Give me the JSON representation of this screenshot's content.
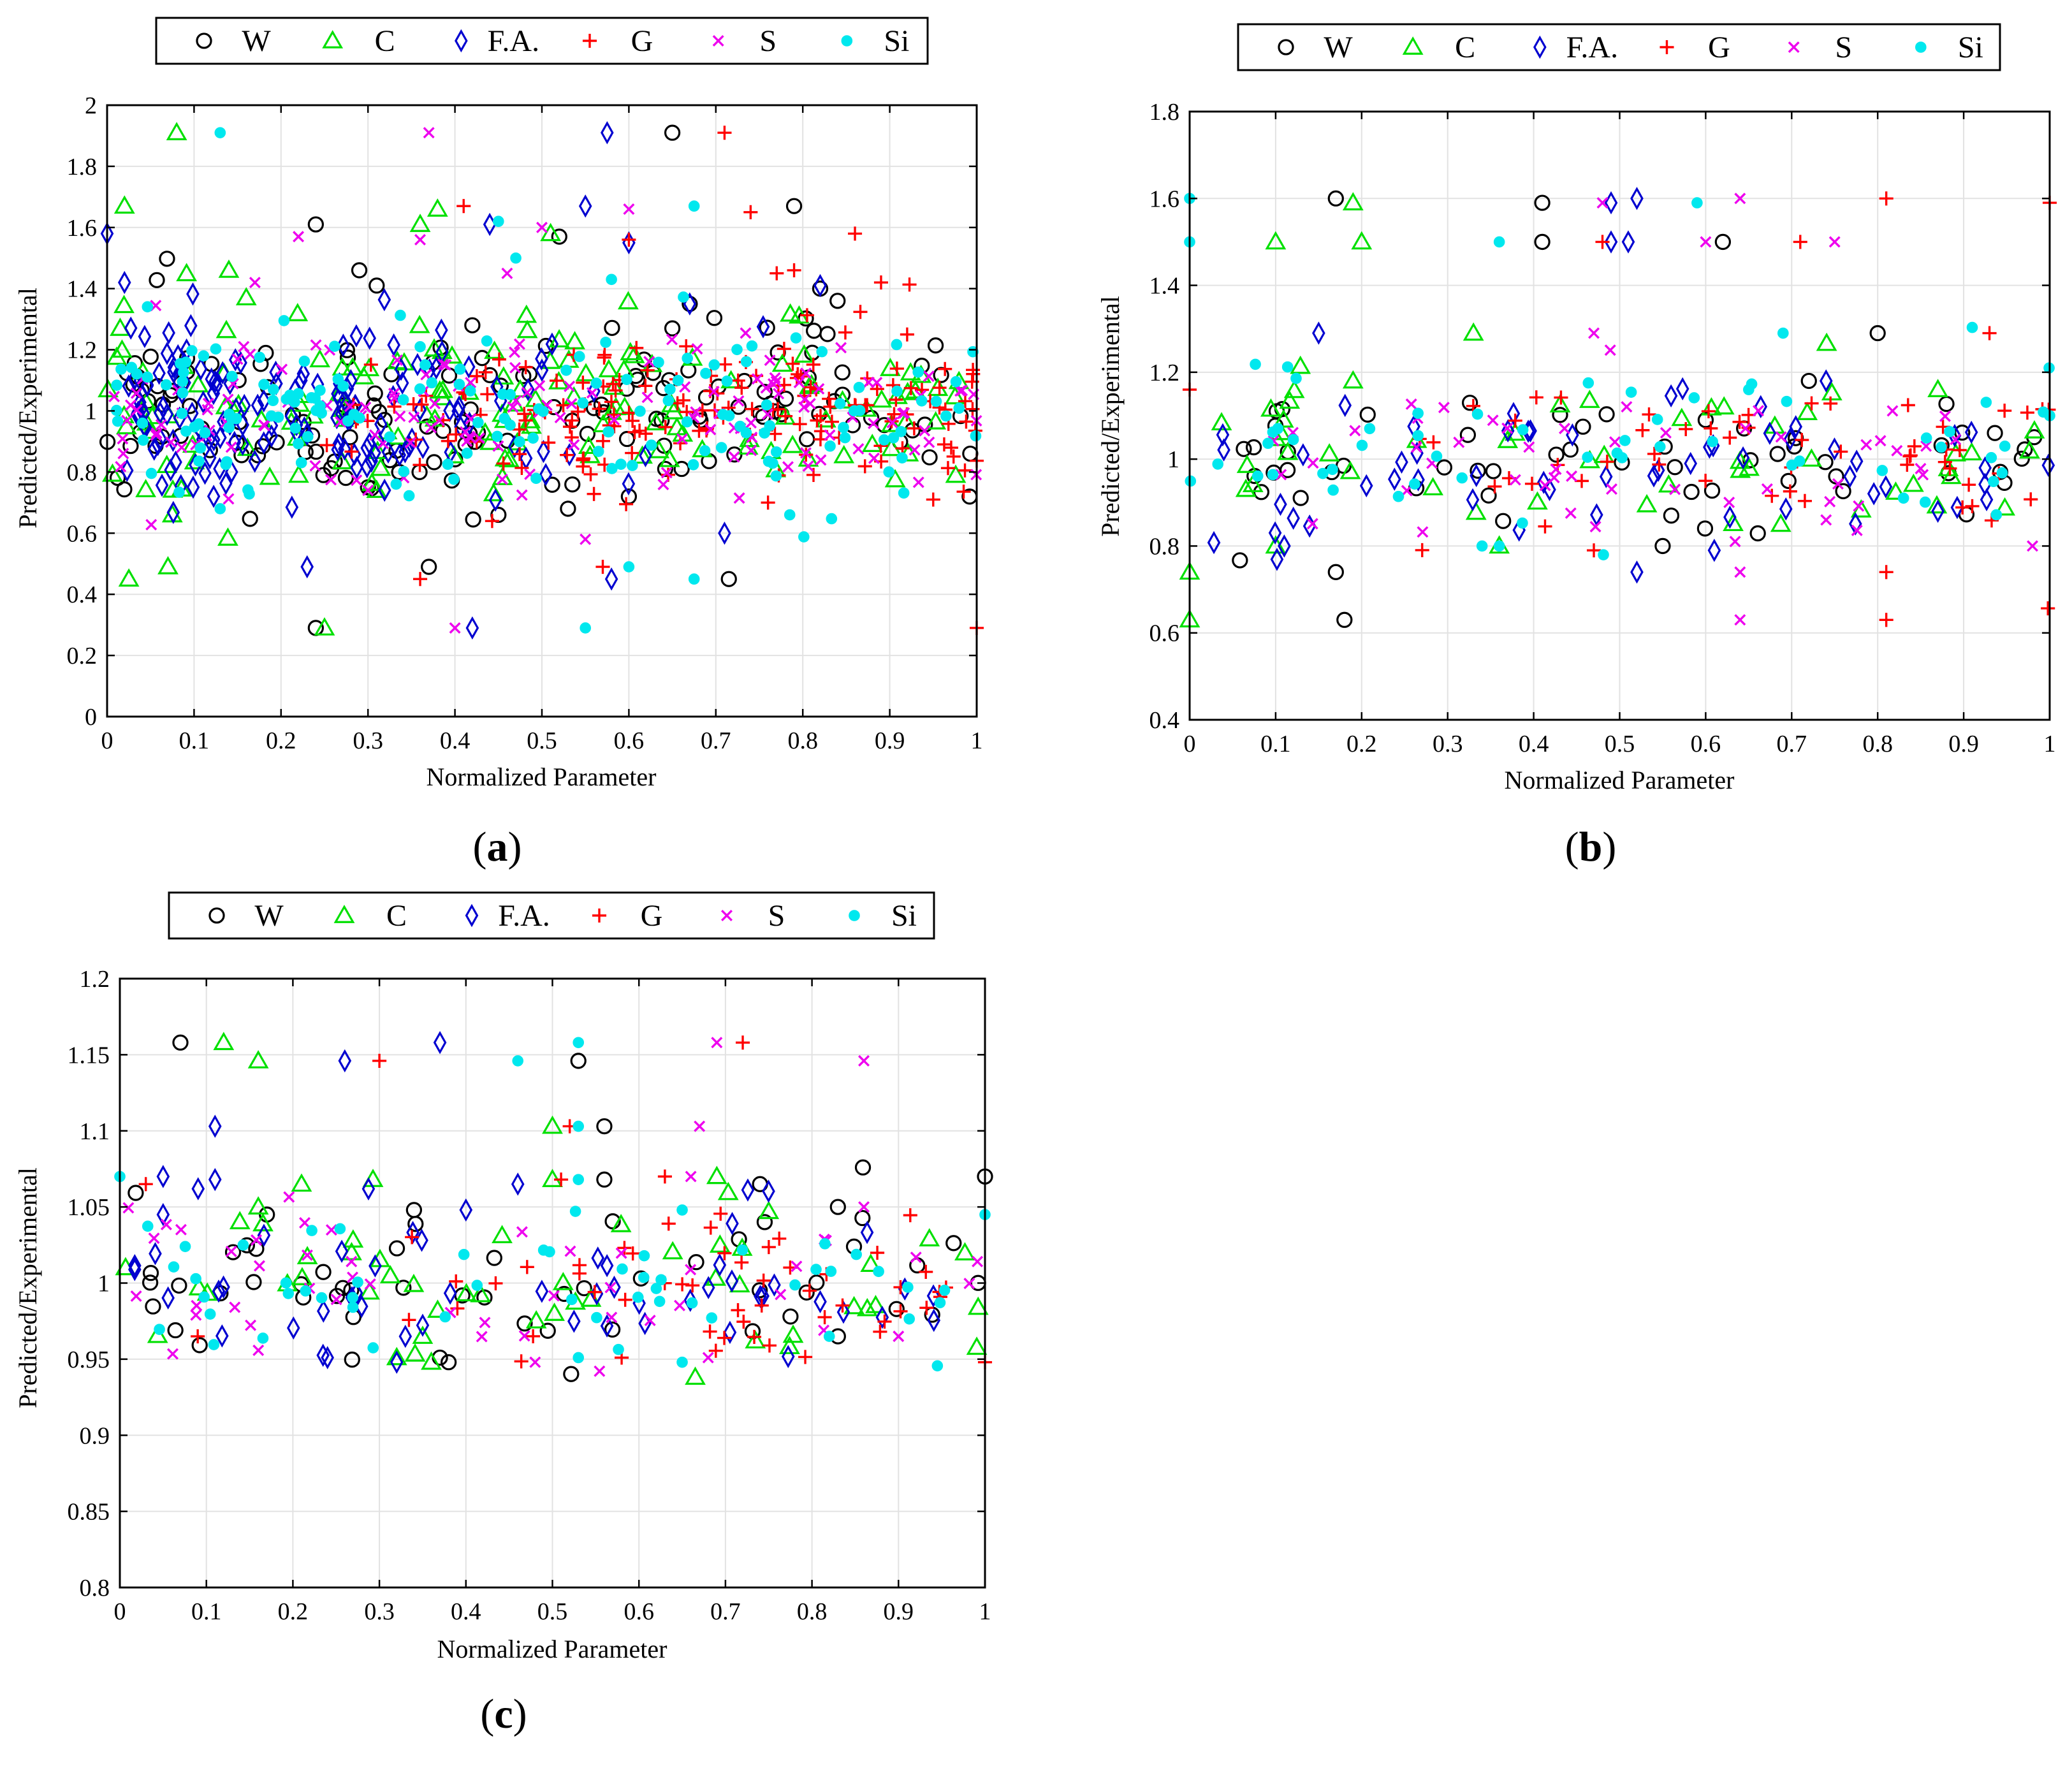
{
  "chart_data": [
    {
      "id": "a",
      "type": "scatter",
      "panel_label": "(a)",
      "panel_letter": "a",
      "xlabel": "Normalized Parameter",
      "ylabel": "Predicted/Experimental",
      "xlim": [
        0,
        1
      ],
      "ylim": [
        0,
        2
      ],
      "xticks": [
        0,
        0.1,
        0.2,
        0.3,
        0.4,
        0.5,
        0.6,
        0.7,
        0.8,
        0.9,
        1
      ],
      "yticks": [
        0,
        0.2,
        0.4,
        0.6,
        0.8,
        1,
        1.2,
        1.4,
        1.6,
        1.8,
        2
      ],
      "grid": true,
      "legend": [
        "W",
        "C",
        "F.A.",
        "G",
        "S",
        "Si"
      ],
      "series": [
        {
          "name": "W",
          "color": "#000000",
          "marker": "circle",
          "seed": 11,
          "count": 150,
          "spread": 0.14,
          "x": [
            0.65,
            0.24,
            0.79,
            0.715,
            0.37,
            0.24,
            0.31,
            0.29,
            0.42,
            0.52,
            0.53,
            0.65,
            0.3,
            0.45,
            0.6,
            0.67,
            0.82,
            0.84
          ],
          "y": [
            1.91,
            1.61,
            1.67,
            0.45,
            0.49,
            0.29,
            1.41,
            1.46,
            1.28,
            1.57,
            0.68,
            1.27,
            0.75,
            0.66,
            0.72,
            1.35,
            1.4,
            1.36
          ]
        },
        {
          "name": "C",
          "color": "#00e000",
          "marker": "triangle",
          "seed": 22,
          "count": 150,
          "spread": 0.14,
          "x": [
            0.08,
            0.02,
            0.07,
            0.38,
            0.36,
            0.025,
            0.075,
            0.25,
            0.51,
            0.015,
            0.14,
            0.31,
            0.16
          ],
          "y": [
            1.91,
            1.67,
            0.49,
            1.66,
            1.61,
            0.45,
            0.66,
            0.29,
            1.58,
            1.27,
            1.46,
            0.74,
            1.37
          ]
        },
        {
          "name": "F.A.",
          "color": "#0000d0",
          "marker": "diamond",
          "seed": 33,
          "count": 160,
          "spread": 0.14,
          "x": [
            0.575,
            0.0,
            0.02,
            0.42,
            0.23,
            0.58,
            0.44,
            0.55,
            0.6,
            0.82,
            0.67,
            0.71
          ],
          "y": [
            1.91,
            1.58,
            1.42,
            0.29,
            0.49,
            0.45,
            1.61,
            1.67,
            1.55,
            1.41,
            1.35,
            0.6
          ]
        },
        {
          "name": "G",
          "color": "#ff0000",
          "marker": "plus",
          "seed": 44,
          "count": 170,
          "spread": 0.12,
          "x": [
            0.71,
            1.0,
            0.36,
            0.41,
            0.6,
            0.74,
            0.77,
            0.79,
            0.86,
            0.92,
            0.95,
            0.57,
            0.76,
            0.89
          ],
          "y": [
            1.91,
            0.29,
            0.45,
            1.67,
            1.56,
            1.65,
            1.45,
            1.46,
            1.58,
            1.25,
            0.71,
            0.49,
            0.7,
            1.42
          ]
        },
        {
          "name": "S",
          "color": "#ee00ee",
          "marker": "x",
          "seed": 55,
          "count": 150,
          "spread": 0.14,
          "x": [
            0.37,
            0.4,
            0.22,
            0.6,
            0.36,
            0.46,
            0.5,
            0.55,
            0.3,
            0.17
          ],
          "y": [
            1.91,
            0.29,
            1.57,
            1.66,
            1.56,
            1.45,
            1.6,
            0.58,
            0.74,
            1.42
          ]
        },
        {
          "name": "Si",
          "color": "#00e8ee",
          "marker": "star",
          "seed": 66,
          "count": 160,
          "spread": 0.13,
          "x": [
            0.13,
            0.55,
            0.675,
            0.6,
            0.675,
            0.785,
            0.58,
            0.45,
            0.36,
            0.13,
            0.47
          ],
          "y": [
            1.91,
            0.29,
            1.67,
            0.49,
            0.45,
            0.66,
            1.43,
            1.62,
            1.21,
            0.68,
            1.5
          ]
        }
      ]
    },
    {
      "id": "b",
      "type": "scatter",
      "panel_label": "(b)",
      "panel_letter": "b",
      "xlabel": "Normalized Parameter",
      "ylabel": "Predicted/Experimental",
      "xlim": [
        0,
        1
      ],
      "ylim": [
        0.4,
        1.8
      ],
      "xticks": [
        0,
        0.1,
        0.2,
        0.3,
        0.4,
        0.5,
        0.6,
        0.7,
        0.8,
        0.9,
        1
      ],
      "yticks": [
        0.4,
        0.6,
        0.8,
        1,
        1.2,
        1.4,
        1.6,
        1.8
      ],
      "grid": true,
      "legend": [
        "W",
        "C",
        "F.A.",
        "G",
        "S",
        "Si"
      ],
      "series": [
        {
          "name": "W",
          "color": "#000000",
          "marker": "circle",
          "seed": 71,
          "count": 55,
          "spread": 0.09,
          "x": [
            0.17,
            0.41,
            0.41,
            0.62,
            0.8,
            0.17,
            0.18,
            0.55,
            0.56,
            0.6,
            0.72
          ],
          "y": [
            1.6,
            1.59,
            1.5,
            1.5,
            1.29,
            0.74,
            0.63,
            0.8,
            0.87,
            1.09,
            1.18
          ]
        },
        {
          "name": "C",
          "color": "#00e000",
          "marker": "triangle",
          "seed": 72,
          "count": 50,
          "spread": 0.09,
          "x": [
            0.19,
            0.1,
            0.2,
            0.33,
            0.0,
            0.0,
            0.1,
            0.19,
            0.36,
            0.87
          ],
          "y": [
            1.59,
            1.5,
            1.5,
            1.29,
            0.74,
            0.63,
            0.8,
            1.18,
            0.8,
            1.16
          ]
        },
        {
          "name": "F.A.",
          "color": "#0000d0",
          "marker": "diamond",
          "seed": 73,
          "count": 55,
          "spread": 0.09,
          "x": [
            0.49,
            0.52,
            0.49,
            0.51,
            0.15,
            0.52,
            0.61,
            0.11,
            0.74,
            0.87
          ],
          "y": [
            1.59,
            1.6,
            1.5,
            1.5,
            1.29,
            0.74,
            0.79,
            0.8,
            1.18,
            0.88
          ]
        },
        {
          "name": "G",
          "color": "#ff0000",
          "marker": "plus",
          "seed": 74,
          "count": 55,
          "spread": 0.09,
          "x": [
            0.81,
            1.0,
            0.48,
            0.71,
            0.93,
            0.81,
            0.81,
            0.0,
            0.47
          ],
          "y": [
            1.6,
            1.59,
            1.5,
            1.5,
            1.29,
            0.74,
            0.63,
            1.16,
            0.79
          ]
        },
        {
          "name": "S",
          "color": "#ee00ee",
          "marker": "x",
          "seed": 75,
          "count": 50,
          "spread": 0.09,
          "x": [
            0.48,
            0.64,
            0.6,
            0.75,
            0.47,
            0.64,
            0.64,
            0.98,
            0.74
          ],
          "y": [
            1.59,
            1.6,
            1.5,
            1.5,
            1.29,
            0.74,
            0.63,
            0.8,
            0.86
          ]
        },
        {
          "name": "Si",
          "color": "#00e8ee",
          "marker": "star",
          "seed": 76,
          "count": 55,
          "spread": 0.09,
          "x": [
            0.0,
            0.59,
            0.0,
            0.36,
            0.69,
            0.36,
            0.34,
            1.0,
            0.65
          ],
          "y": [
            1.6,
            1.59,
            1.5,
            1.5,
            1.29,
            0.8,
            0.8,
            1.1,
            1.16
          ]
        }
      ]
    },
    {
      "id": "c",
      "type": "scatter",
      "panel_label": "(c)",
      "panel_letter": "c",
      "xlabel": "Normalized Parameter",
      "ylabel": "Predicted/Experimental",
      "xlim": [
        0,
        1
      ],
      "ylim": [
        0.8,
        1.2
      ],
      "xticks": [
        0,
        0.1,
        0.2,
        0.3,
        0.4,
        0.5,
        0.6,
        0.7,
        0.8,
        0.9,
        1
      ],
      "yticks": [
        0.8,
        0.85,
        0.9,
        0.95,
        1,
        1.05,
        1.1,
        1.15,
        1.2
      ],
      "grid": true,
      "legend": [
        "W",
        "C",
        "F.A.",
        "G",
        "S",
        "Si"
      ],
      "series": [
        {
          "name": "W",
          "color": "#000000",
          "marker": "circle",
          "seed": 81,
          "count": 50,
          "spread": 0.025,
          "x": [
            0.07,
            0.53,
            0.56,
            0.56,
            1.0,
            0.34,
            0.17,
            0.37,
            0.38,
            0.83,
            0.74,
            0.83
          ],
          "y": [
            1.158,
            1.146,
            1.103,
            1.068,
            1.07,
            1.048,
            1.045,
            0.951,
            0.948,
            0.965,
            1.065,
            1.05
          ]
        },
        {
          "name": "C",
          "color": "#00e000",
          "marker": "triangle",
          "seed": 82,
          "count": 45,
          "spread": 0.025,
          "x": [
            0.12,
            0.16,
            0.5,
            0.5,
            0.21,
            0.69,
            0.16,
            0.32,
            0.36,
            0.35,
            0.75
          ],
          "y": [
            1.158,
            1.146,
            1.103,
            1.068,
            1.065,
            1.07,
            1.05,
            0.951,
            0.948,
            0.965,
            1.047
          ]
        },
        {
          "name": "F.A.",
          "color": "#0000d0",
          "marker": "diamond",
          "seed": 83,
          "count": 50,
          "spread": 0.025,
          "x": [
            0.37,
            0.26,
            0.11,
            0.05,
            0.11,
            0.24,
            0.32,
            0.33,
            0.4,
            0.46,
            0.05
          ],
          "y": [
            1.158,
            1.146,
            1.103,
            1.07,
            1.068,
            0.951,
            0.948,
            0.965,
            1.048,
            1.065,
            1.045
          ]
        },
        {
          "name": "G",
          "color": "#ff0000",
          "marker": "plus",
          "seed": 84,
          "count": 50,
          "spread": 0.025,
          "x": [
            0.3,
            0.72,
            0.52,
            0.51,
            0.03,
            0.09,
            0.58,
            1.0,
            0.63
          ],
          "y": [
            1.146,
            1.158,
            1.103,
            1.068,
            1.065,
            0.965,
            0.951,
            0.948,
            1.07
          ]
        },
        {
          "name": "S",
          "color": "#ee00ee",
          "marker": "x",
          "seed": 85,
          "count": 45,
          "spread": 0.025,
          "x": [
            0.69,
            0.86,
            0.67,
            0.48,
            0.68,
            0.66,
            0.9,
            0.86
          ],
          "y": [
            1.158,
            1.146,
            1.103,
            0.948,
            0.951,
            1.07,
            0.965,
            1.05
          ]
        },
        {
          "name": "Si",
          "color": "#00e8ee",
          "marker": "star",
          "seed": 86,
          "count": 50,
          "spread": 0.025,
          "x": [
            0.53,
            0.46,
            0.53,
            0.0,
            0.53,
            0.53,
            0.65,
            0.82,
            0.65,
            1.0
          ],
          "y": [
            1.158,
            1.146,
            1.103,
            1.07,
            1.068,
            0.951,
            0.948,
            0.965,
            1.048,
            1.045
          ]
        }
      ]
    }
  ]
}
